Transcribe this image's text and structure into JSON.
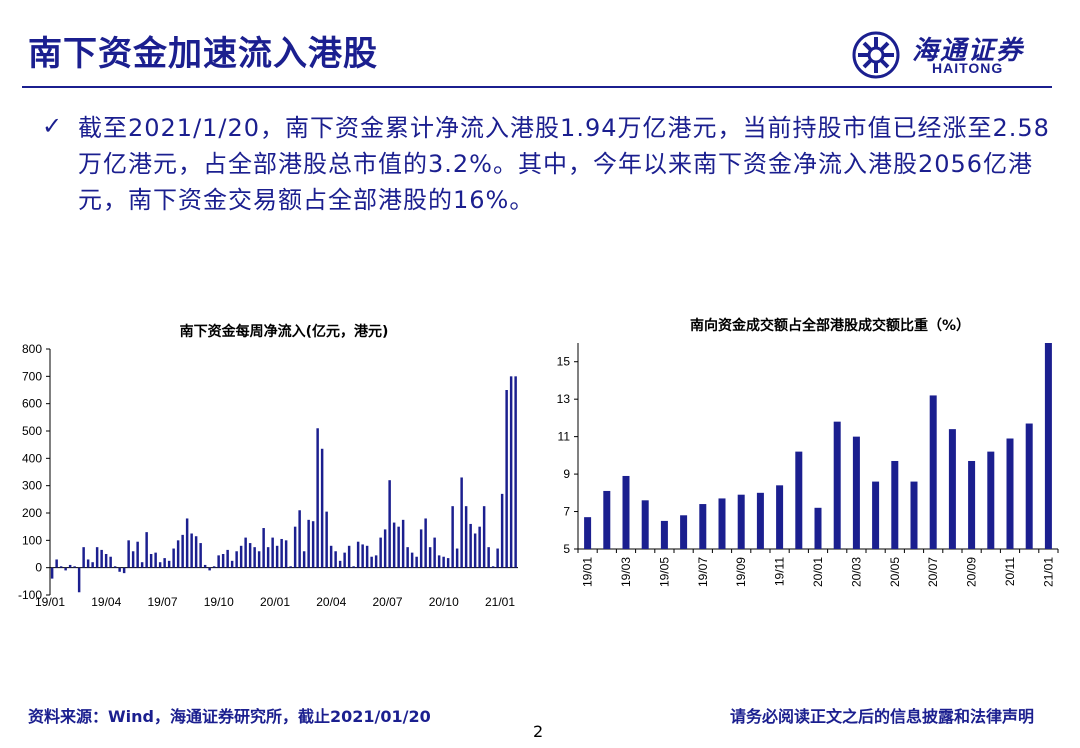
{
  "header": {
    "title": "南下资金加速流入港股",
    "logo_cn": "海通证券",
    "logo_en": "HAITONG"
  },
  "bullet": {
    "text": "截至2021/1/20，南下资金累计净流入港股1.94万亿港元，当前持股市值已经涨至2.58万亿港元，占全部港股总市值的3.2%。其中，今年以来南下资金净流入港股2056亿港元，南下资金交易额占全部港股的16%。"
  },
  "footer": {
    "source": "资料来源：Wind，海通证券研究所，截止2021/01/20",
    "disclaimer": "请务必阅读正文之后的信息披露和法律声明",
    "page": "2"
  },
  "colors": {
    "brand": "#1b1f8f",
    "bar": "#1b1f8f"
  },
  "chart_data": [
    {
      "type": "bar",
      "title": "南下资金每周净流入(亿元，港元)",
      "ylim": [
        -100,
        800
      ],
      "yticks": [
        -100,
        0,
        100,
        200,
        300,
        400,
        500,
        600,
        700,
        800
      ],
      "xtick_labels": [
        "19/01",
        "19/04",
        "19/07",
        "19/10",
        "20/01",
        "20/04",
        "20/07",
        "20/10",
        "21/01"
      ],
      "values": [
        -40,
        30,
        5,
        -10,
        10,
        5,
        -90,
        75,
        30,
        20,
        75,
        65,
        50,
        40,
        5,
        -15,
        -20,
        100,
        60,
        95,
        20,
        130,
        50,
        55,
        20,
        35,
        25,
        70,
        100,
        120,
        180,
        125,
        115,
        90,
        10,
        -10,
        5,
        45,
        50,
        65,
        25,
        60,
        80,
        110,
        90,
        75,
        60,
        145,
        75,
        110,
        80,
        105,
        100,
        5,
        150,
        210,
        60,
        175,
        170,
        510,
        435,
        205,
        80,
        60,
        25,
        55,
        80,
        5,
        95,
        85,
        80,
        40,
        45,
        110,
        140,
        320,
        165,
        150,
        175,
        75,
        55,
        40,
        140,
        180,
        75,
        110,
        45,
        40,
        35,
        225,
        70,
        330,
        225,
        160,
        125,
        150,
        225,
        75,
        5,
        70,
        270,
        650,
        700,
        700
      ]
    },
    {
      "type": "bar",
      "title": "南向资金成交额占全部港股成交额比重（%）",
      "ylim": [
        5,
        16
      ],
      "yticks": [
        5,
        7,
        9,
        11,
        13,
        15
      ],
      "categories": [
        "19/01",
        "19/02",
        "19/03",
        "19/04",
        "19/05",
        "19/06",
        "19/07",
        "19/08",
        "19/09",
        "19/10",
        "19/11",
        "19/12",
        "20/01",
        "20/02",
        "20/03",
        "20/04",
        "20/05",
        "20/06",
        "20/07",
        "20/08",
        "20/09",
        "20/10",
        "20/11",
        "20/12",
        "21/01"
      ],
      "xtick_labels": [
        "19/01",
        "19/03",
        "19/05",
        "19/07",
        "19/09",
        "19/11",
        "20/01",
        "20/03",
        "20/05",
        "20/07",
        "20/09",
        "20/11",
        "21/01"
      ],
      "values": [
        6.7,
        8.1,
        8.9,
        7.6,
        6.5,
        6.8,
        7.4,
        7.7,
        7.9,
        8.0,
        8.4,
        10.2,
        7.2,
        11.8,
        11.0,
        8.6,
        9.7,
        8.6,
        13.2,
        11.4,
        9.7,
        10.2,
        10.9,
        11.7,
        16.0
      ]
    }
  ]
}
